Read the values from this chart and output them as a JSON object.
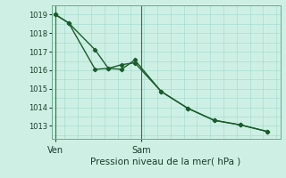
{
  "xlabel": "Pression niveau de la mer( hPa )",
  "background_color": "#cef0e4",
  "grid_color": "#a8ddd0",
  "line_color1": "#1a5c2a",
  "line_color2": "#1a5c2a",
  "ylim": [
    1012.3,
    1019.5
  ],
  "yticks": [
    1013,
    1014,
    1015,
    1016,
    1017,
    1018,
    1019
  ],
  "series1_x": [
    0,
    1,
    3,
    4,
    5,
    6,
    8,
    10,
    12,
    14,
    16
  ],
  "series1_y": [
    1019.0,
    1018.55,
    1017.1,
    1016.1,
    1016.3,
    1016.4,
    1014.85,
    1013.95,
    1013.3,
    1013.05,
    1012.7
  ],
  "series2_x": [
    0,
    1,
    3,
    4,
    5,
    6,
    8,
    10,
    12,
    14,
    16
  ],
  "series2_y": [
    1019.0,
    1018.55,
    1016.05,
    1016.1,
    1016.05,
    1016.55,
    1014.85,
    1013.95,
    1013.3,
    1013.05,
    1012.7
  ],
  "ven_x": 0,
  "sam_x": 6.5,
  "xtick_positions": [
    0,
    6.5
  ],
  "xtick_labels": [
    "Ven",
    "Sam"
  ],
  "xlim": [
    -0.3,
    17.0
  ],
  "vline_color": "#3a6a4a",
  "spine_color": "#6aaa8a",
  "tick_label_color": "#1a3a2a",
  "xlabel_fontsize": 7.5,
  "ytick_fontsize": 6.0,
  "xtick_fontsize": 7.0
}
